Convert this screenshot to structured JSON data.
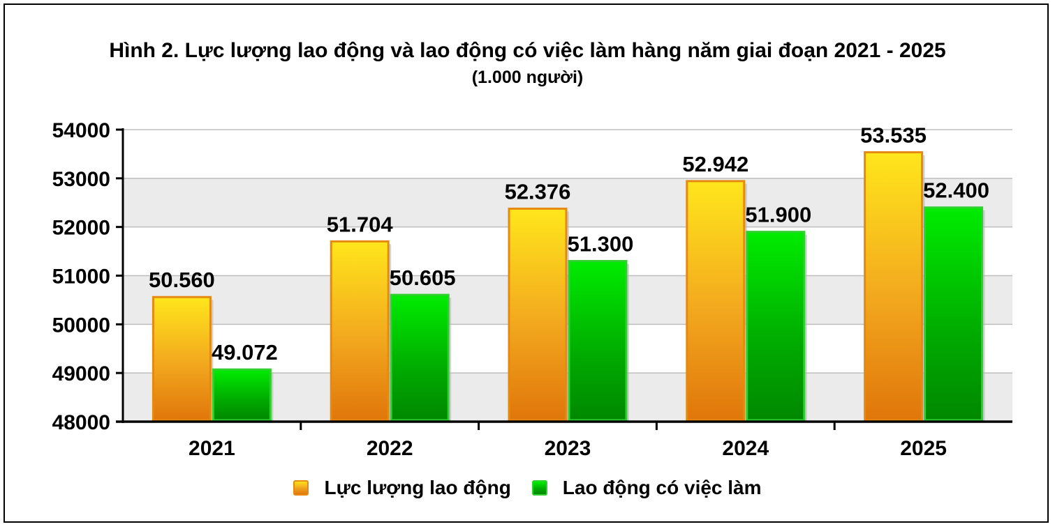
{
  "chart_data": {
    "type": "bar",
    "title": "Hình 2. Lực lượng lao động và lao động có việc làm hàng năm giai đoạn 2021 - 2025",
    "subtitle": "(1.000 người)",
    "categories": [
      "2021",
      "2022",
      "2023",
      "2024",
      "2025"
    ],
    "series": [
      {
        "name": "Lực lượng lao động",
        "values": [
          50560,
          51704,
          52376,
          52942,
          53535
        ],
        "labels": [
          "50.560",
          "51.704",
          "52.376",
          "52.942",
          "53.535"
        ],
        "color": "#f0a020"
      },
      {
        "name": "Lao động có việc làm",
        "values": [
          49072,
          50605,
          51300,
          51900,
          52400
        ],
        "labels": [
          "49.072",
          "50.605",
          "51.300",
          "51.900",
          "52.400"
        ],
        "color": "#00b800"
      }
    ],
    "ylim": [
      48000,
      54000
    ],
    "yticks": [
      "48000",
      "49000",
      "50000",
      "51000",
      "52000",
      "53000",
      "54000"
    ],
    "grid": true,
    "legend": "bottom"
  }
}
